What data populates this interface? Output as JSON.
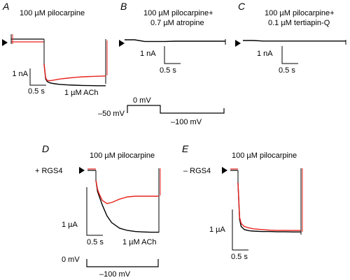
{
  "figure": {
    "panels": [
      {
        "id": "A",
        "letter": "A",
        "title": "100 µM pilocarpine",
        "marker": "",
        "scale_y": "1 nA",
        "scale_x": "0.5 s",
        "trace_label": "1 µM ACh"
      },
      {
        "id": "B",
        "letter": "B",
        "title_line1": "100 µM pilocarpine+",
        "title_line2": "0.7 µM atropine",
        "scale_y": "1 nA",
        "scale_x": "0.5 s"
      },
      {
        "id": "C",
        "letter": "C",
        "title_line1": "100 µM pilocarpine+",
        "title_line2": "0.1 µM tertiapin-Q",
        "scale_y": "1 nA",
        "scale_x": "0.5 s"
      },
      {
        "id": "D",
        "letter": "D",
        "title": "100 µM pilocarpine",
        "marker": "+ RGS4",
        "scale_y": "1 µA",
        "scale_x": "0.5 s",
        "trace_label": "1 µM ACh"
      },
      {
        "id": "E",
        "letter": "E",
        "title": "100 µM pilocarpine",
        "marker": "– RGS4",
        "scale_y": "1 µA",
        "scale_x": "0.5 s"
      }
    ],
    "protocols": [
      {
        "id": "top",
        "levels": [
          "–50 mV",
          "0 mV",
          "–100 mV"
        ]
      },
      {
        "id": "bottom",
        "levels": [
          "0 mV",
          "–100 mV"
        ]
      }
    ],
    "colors": {
      "pilocarpine": "#e8231e",
      "acetylcholine": "#000000"
    }
  },
  "chart_data": [
    {
      "panel": "A",
      "type": "line",
      "series": [
        {
          "name": "1 µM ACh",
          "color": "#000000",
          "x": [
            0,
            0.05,
            0.1,
            0.2,
            0.35,
            0.5,
            0.75,
            1.0,
            1.25,
            1.5,
            1.75,
            2.0
          ],
          "y": [
            0,
            -2.6,
            -3.1,
            -3.35,
            -3.5,
            -3.6,
            -3.7,
            -3.75,
            -3.8,
            -3.82,
            -3.85,
            -3.85
          ]
        },
        {
          "series_color": "red",
          "color": "#e8231e",
          "x": [
            0,
            0.05,
            0.1,
            0.2,
            0.35,
            0.5,
            0.75,
            1.0,
            1.25,
            1.5,
            1.75,
            2.0
          ],
          "y": [
            0,
            -2.4,
            -2.9,
            -2.95,
            -2.8,
            -2.65,
            -2.5,
            -2.35,
            -2.25,
            -2.2,
            -2.15,
            -2.1
          ]
        }
      ]
    },
    {
      "panel": "D",
      "type": "line",
      "series": [
        {
          "name": "1 µM ACh",
          "color": "#000000",
          "x": [
            0,
            0.05,
            0.1,
            0.2,
            0.35,
            0.5,
            0.75,
            1.0,
            1.25,
            1.5,
            1.75,
            2.0
          ],
          "y": [
            0,
            -0.5,
            -0.7,
            -1.1,
            -1.6,
            -1.9,
            -2.15,
            -2.25,
            -2.3,
            -2.32,
            -2.33,
            -2.33
          ]
        },
        {
          "series_color": "red",
          "color": "#e8231e",
          "x": [
            0,
            0.05,
            0.1,
            0.2,
            0.35,
            0.5,
            0.75,
            1.0,
            1.25,
            1.5,
            1.75,
            2.0
          ],
          "y": [
            0,
            -0.4,
            -0.6,
            -0.9,
            -1.05,
            -1.0,
            -0.85,
            -0.75,
            -0.72,
            -0.72,
            -0.72,
            -0.72
          ]
        }
      ]
    },
    {
      "panel": "E",
      "type": "line",
      "series": [
        {
          "series_color": "black",
          "color": "#000000",
          "x": [
            0,
            0.05,
            0.1,
            0.2,
            0.35,
            0.5,
            0.75,
            1.0,
            1.25,
            1.5,
            1.75,
            2.0
          ],
          "y": [
            0,
            -1.8,
            -2.15,
            -2.3,
            -2.36,
            -2.38,
            -2.4,
            -2.4,
            -2.41,
            -2.41,
            -2.42,
            -2.42
          ]
        },
        {
          "series_color": "red",
          "color": "#e8231e",
          "x": [
            0,
            0.05,
            0.1,
            0.2,
            0.35,
            0.5,
            0.75,
            1.0,
            1.25,
            1.5,
            1.75,
            2.0
          ],
          "y": [
            0,
            -1.7,
            -2.0,
            -2.15,
            -2.22,
            -2.27,
            -2.3,
            -2.33,
            -2.34,
            -2.34,
            -2.35,
            -2.35
          ]
        }
      ]
    },
    {
      "panel": "B",
      "type": "line",
      "series": [
        {
          "series_color": "black",
          "color": "#000000",
          "x": [
            0,
            0.25,
            0.5,
            0.75,
            1.0,
            1.25,
            1.5,
            1.75,
            2.0,
            2.25,
            2.5
          ],
          "y": [
            0,
            0,
            -0.06,
            -0.06,
            -0.06,
            -0.05,
            -0.05,
            -0.05,
            -0.05,
            -0.05,
            -0.05
          ]
        }
      ]
    },
    {
      "panel": "C",
      "type": "line",
      "series": [
        {
          "series_color": "black",
          "color": "#000000",
          "x": [
            0,
            0.25,
            0.5,
            0.75,
            1.0,
            1.25,
            1.5,
            1.75,
            2.0,
            2.25,
            2.5
          ],
          "y": [
            0,
            0,
            -0.02,
            -0.02,
            -0.02,
            -0.02,
            -0.02,
            -0.02,
            -0.02,
            -0.02,
            -0.02
          ]
        }
      ]
    }
  ]
}
